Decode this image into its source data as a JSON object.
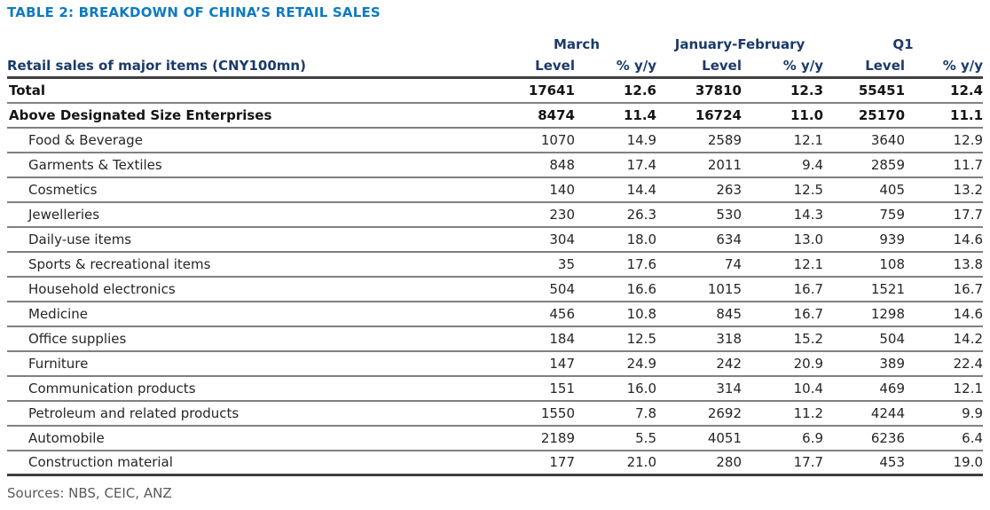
{
  "title": "TABLE 2: BREAKDOWN OF CHINA’S RETAIL SALES",
  "table": {
    "label_header": "Retail sales of major items (CNY100mn)",
    "periods": [
      "March",
      "January-February",
      "Q1"
    ],
    "sub_headers": [
      "Level",
      "% y/y",
      "Level",
      "% y/y",
      "Level",
      "% y/y"
    ],
    "rows": [
      {
        "label": "Total",
        "bold": true,
        "indent": false,
        "values": [
          "17641",
          "12.6",
          "37810",
          "12.3",
          "55451",
          "12.4"
        ]
      },
      {
        "label": "Above Designated Size Enterprises",
        "bold": true,
        "indent": false,
        "values": [
          "8474",
          "11.4",
          "16724",
          "11.0",
          "25170",
          "11.1"
        ]
      },
      {
        "label": "Food & Beverage",
        "bold": false,
        "indent": true,
        "values": [
          "1070",
          "14.9",
          "2589",
          "12.1",
          "3640",
          "12.9"
        ]
      },
      {
        "label": "Garments & Textiles",
        "bold": false,
        "indent": true,
        "values": [
          "848",
          "17.4",
          "2011",
          "9.4",
          "2859",
          "11.7"
        ]
      },
      {
        "label": "Cosmetics",
        "bold": false,
        "indent": true,
        "values": [
          "140",
          "14.4",
          "263",
          "12.5",
          "405",
          "13.2"
        ]
      },
      {
        "label": "Jewelleries",
        "bold": false,
        "indent": true,
        "values": [
          "230",
          "26.3",
          "530",
          "14.3",
          "759",
          "17.7"
        ]
      },
      {
        "label": "Daily-use items",
        "bold": false,
        "indent": true,
        "values": [
          "304",
          "18.0",
          "634",
          "13.0",
          "939",
          "14.6"
        ]
      },
      {
        "label": "Sports & recreational items",
        "bold": false,
        "indent": true,
        "values": [
          "35",
          "17.6",
          "74",
          "12.1",
          "108",
          "13.8"
        ]
      },
      {
        "label": "Household electronics",
        "bold": false,
        "indent": true,
        "values": [
          "504",
          "16.6",
          "1015",
          "16.7",
          "1521",
          "16.7"
        ]
      },
      {
        "label": "Medicine",
        "bold": false,
        "indent": true,
        "values": [
          "456",
          "10.8",
          "845",
          "16.7",
          "1298",
          "14.6"
        ]
      },
      {
        "label": "Office supplies",
        "bold": false,
        "indent": true,
        "values": [
          "184",
          "12.5",
          "318",
          "15.2",
          "504",
          "14.2"
        ]
      },
      {
        "label": "Furniture",
        "bold": false,
        "indent": true,
        "values": [
          "147",
          "24.9",
          "242",
          "20.9",
          "389",
          "22.4"
        ]
      },
      {
        "label": "Communication products",
        "bold": false,
        "indent": true,
        "values": [
          "151",
          "16.0",
          "314",
          "10.4",
          "469",
          "12.1"
        ]
      },
      {
        "label": "Petroleum and related products",
        "bold": false,
        "indent": true,
        "values": [
          "1550",
          "7.8",
          "2692",
          "11.2",
          "4244",
          "9.9"
        ]
      },
      {
        "label": "Automobile",
        "bold": false,
        "indent": true,
        "values": [
          "2189",
          "5.5",
          "4051",
          "6.9",
          "6236",
          "6.4"
        ]
      },
      {
        "label": "Construction material",
        "bold": false,
        "indent": true,
        "values": [
          "177",
          "21.0",
          "280",
          "17.7",
          "453",
          "19.0"
        ]
      }
    ],
    "source": "Sources: NBS, CEIC, ANZ"
  },
  "colors": {
    "title_blue": "#0e7ac1",
    "header_navy": "#1b3a6b",
    "body_text": "#262626",
    "row_line": "#808080",
    "heavy_line": "#3f3f3f",
    "source_gray": "#595959"
  }
}
